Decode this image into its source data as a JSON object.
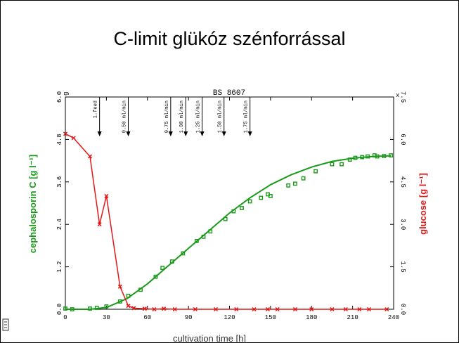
{
  "slide": {
    "title": "C-limit glükóz szénforrással"
  },
  "chart_data": {
    "type": "scatter",
    "title": "BS 8607",
    "xlabel": "cultivation time [h]",
    "ylabel_left": "cephalosporin C [g l⁻¹]",
    "ylabel_right": "glucose [g l⁻¹]",
    "left_axis_marker": "g",
    "right_axis_marker": "x",
    "xlim": [
      0,
      240
    ],
    "ylim_left": [
      0,
      6.0
    ],
    "ylim_right": [
      0,
      7.5
    ],
    "x_ticks": [
      "0",
      "30",
      "60",
      "90",
      "120",
      "150",
      "180",
      "210",
      "240"
    ],
    "y_left_ticks": [
      "0.0",
      "1.2",
      "2.4",
      "3.6",
      "4.8",
      "6.0"
    ],
    "y_right_ticks": [
      "0.0",
      "1.5",
      "3.0",
      "4.5",
      "6.0",
      "7.5"
    ],
    "feed_events": [
      {
        "x": 25,
        "label": "1.feed"
      },
      {
        "x": 46,
        "label": "0.50 ml/min"
      },
      {
        "x": 77,
        "label": "0.75 ml/min"
      },
      {
        "x": 88,
        "label": "1.00 ml/min"
      },
      {
        "x": 100,
        "label": "1.25 ml/min"
      },
      {
        "x": 116,
        "label": "1.50 ml/min"
      },
      {
        "x": 135,
        "label": "1.75 ml/min"
      }
    ],
    "series": [
      {
        "axis": "left",
        "color": "#1a9a1a",
        "marker": "square",
        "points": [
          [
            0,
            0.02
          ],
          [
            5,
            0.0
          ],
          [
            18,
            0.02
          ],
          [
            23,
            0.04
          ],
          [
            30,
            0.08
          ],
          [
            40,
            0.22
          ],
          [
            46,
            0.38
          ],
          [
            55,
            0.55
          ],
          [
            66,
            0.92
          ],
          [
            71,
            1.17
          ],
          [
            78,
            1.35
          ],
          [
            86,
            1.58
          ],
          [
            96,
            1.93
          ],
          [
            101,
            2.05
          ],
          [
            106,
            2.2
          ],
          [
            117,
            2.55
          ],
          [
            123,
            2.77
          ],
          [
            129,
            2.86
          ],
          [
            135,
            3.05
          ],
          [
            143,
            3.15
          ],
          [
            148,
            3.25
          ],
          [
            150,
            3.2
          ],
          [
            163,
            3.5
          ],
          [
            168,
            3.55
          ],
          [
            174,
            3.7
          ],
          [
            183,
            3.9
          ],
          [
            195,
            4.1
          ],
          [
            202,
            4.1
          ],
          [
            208,
            4.23
          ],
          [
            212,
            4.28
          ],
          [
            217,
            4.3
          ],
          [
            221,
            4.32
          ],
          [
            226,
            4.35
          ],
          [
            228,
            4.32
          ],
          [
            233,
            4.33
          ],
          [
            238,
            4.35
          ]
        ],
        "fit": [
          [
            0,
            0.0
          ],
          [
            18,
            0.0
          ],
          [
            30,
            0.05
          ],
          [
            45,
            0.3
          ],
          [
            60,
            0.72
          ],
          [
            75,
            1.22
          ],
          [
            90,
            1.72
          ],
          [
            105,
            2.22
          ],
          [
            120,
            2.72
          ],
          [
            135,
            3.15
          ],
          [
            150,
            3.52
          ],
          [
            165,
            3.8
          ],
          [
            180,
            4.02
          ],
          [
            195,
            4.18
          ],
          [
            210,
            4.27
          ],
          [
            225,
            4.32
          ],
          [
            238,
            4.34
          ]
        ]
      },
      {
        "axis": "right",
        "color": "#e01818",
        "marker": "x",
        "points": [
          [
            0,
            6.2
          ],
          [
            6,
            6.05
          ],
          [
            18,
            5.4
          ],
          [
            25,
            3.0
          ],
          [
            30,
            4.0
          ],
          [
            40,
            0.8
          ],
          [
            46,
            0.12
          ],
          [
            50,
            0.04
          ],
          [
            58,
            0.02
          ],
          [
            65,
            0.0
          ],
          [
            72,
            0.02
          ],
          [
            80,
            0.0
          ],
          [
            95,
            0.0
          ],
          [
            110,
            0.0
          ],
          [
            125,
            0.0
          ],
          [
            138,
            0.0
          ],
          [
            148,
            0.0
          ],
          [
            155,
            0.0
          ],
          [
            168,
            0.0
          ],
          [
            180,
            0.0
          ],
          [
            195,
            0.0
          ],
          [
            205,
            0.0
          ],
          [
            215,
            0.0
          ],
          [
            222,
            0.0
          ],
          [
            235,
            0.0
          ]
        ]
      }
    ]
  }
}
